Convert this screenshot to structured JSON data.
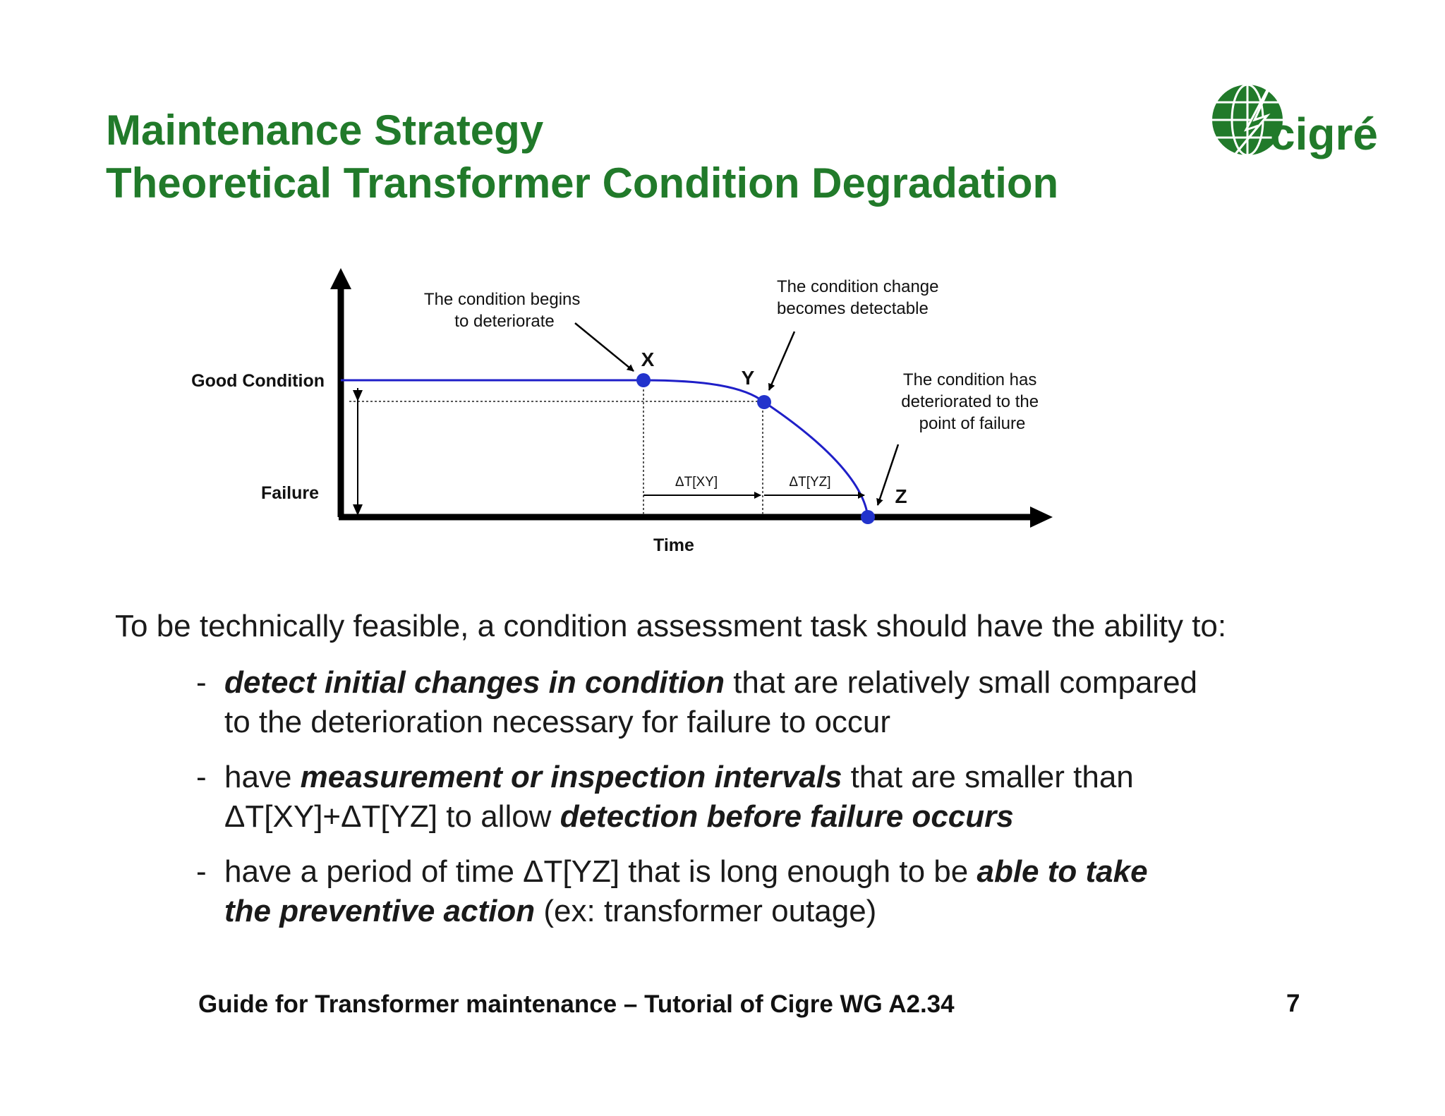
{
  "title": {
    "line1": "Maintenance Strategy",
    "line2": "Theoretical Transformer Condition Degradation"
  },
  "logo": {
    "text": "cigré",
    "icon": "cigre-globe-lightning-logo",
    "color": "#217a2a"
  },
  "diagram": {
    "y_labels": {
      "good": "Good Condition",
      "failure": "Failure"
    },
    "x_label": "Time",
    "points": {
      "x": "X",
      "y": "Y",
      "z": "Z"
    },
    "intervals": {
      "xy": "ΔT[XY]",
      "yz": "ΔT[YZ]"
    },
    "annotations": {
      "begin": [
        "The condition begins",
        "to deteriorate"
      ],
      "detectable": [
        "The condition change",
        "becomes detectable"
      ],
      "failure": [
        "The condition has",
        "deteriorated to the",
        "point of failure"
      ]
    },
    "colors": {
      "curve": "#1f1fc8",
      "point": "#2233cc",
      "axis": "#000000"
    }
  },
  "body": {
    "intro": "To be technically feasible, a condition assessment task should have the ability to:",
    "bullet_dash": "-",
    "b1": {
      "em1": "detect initial changes in condition",
      "t1": " that are relatively small compared",
      "t2": "to the deterioration necessary for failure to occur"
    },
    "b2": {
      "t1": "have ",
      "em1": "measurement or inspection intervals",
      "t2": " that are smaller than",
      "t3": "ΔT[XY]+ΔT[YZ] to allow ",
      "em2": "detection before failure occurs"
    },
    "b3": {
      "t1": "have a period of time ΔT[YZ] that is long enough to be ",
      "em1": "able to take",
      "em2": "the preventive action",
      "t2": " (ex: transformer outage)"
    }
  },
  "footer": "Guide for Transformer maintenance – Tutorial of Cigre WG A2.34",
  "page_number": "7"
}
